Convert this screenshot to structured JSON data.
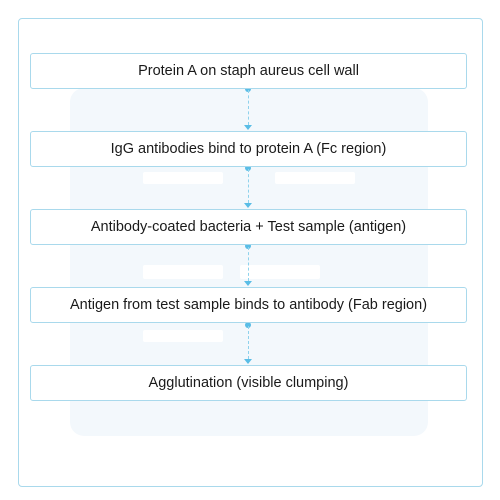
{
  "diagram": {
    "type": "flowchart",
    "steps": [
      {
        "label": "Protein A on staph aureus cell wall"
      },
      {
        "label": "IgG antibodies bind to protein A (Fc region)"
      },
      {
        "label": "Antibody-coated bacteria + Test sample (antigen)"
      },
      {
        "label": "Antigen from test sample binds to antibody (Fab region)"
      },
      {
        "label": "Agglutination (visible clumping)"
      }
    ],
    "colors": {
      "border": "#a9d9ec",
      "connector": "#8fd2ec",
      "arrow": "#59bde6",
      "background_card": "#f3f8fc",
      "text": "#1a1a1a"
    }
  }
}
